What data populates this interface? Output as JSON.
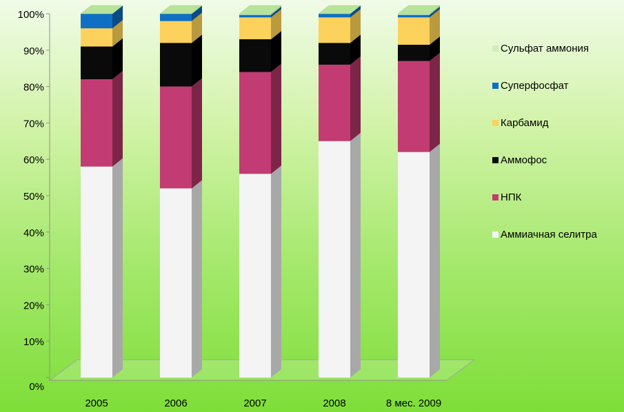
{
  "chart_data": {
    "type": "bar",
    "stacked": true,
    "percent_stacked": true,
    "three_d": true,
    "categories": [
      "2005",
      "2006",
      "2007",
      "2008",
      "8 мес. 2009"
    ],
    "ylim": [
      0,
      100
    ],
    "yticks": [
      "0%",
      "10%",
      "20%",
      "30%",
      "40%",
      "50%",
      "60%",
      "70%",
      "80%",
      "90%",
      "100%"
    ],
    "grid": false,
    "legend_position": "right",
    "series": [
      {
        "name": "Аммиачная селитра",
        "color": "#f4f4f4",
        "side_color": "#a8a8a8",
        "values": [
          58,
          52,
          56,
          65,
          62
        ]
      },
      {
        "name": "НПК",
        "color": "#c23b72",
        "side_color": "#7d2548",
        "values": [
          24,
          28,
          28,
          21,
          25
        ]
      },
      {
        "name": "Аммофос",
        "color": "#0a0a0a",
        "side_color": "#000000",
        "values": [
          9,
          12,
          9,
          6,
          4.5
        ]
      },
      {
        "name": "Карбамид",
        "color": "#fcd15c",
        "side_color": "#b99a3e",
        "values": [
          5,
          6,
          6,
          7,
          7.5
        ]
      },
      {
        "name": "Суперфосфат",
        "color": "#0f6fc4",
        "side_color": "#0a4a85",
        "values": [
          4,
          2,
          0.7,
          1,
          0.7
        ]
      },
      {
        "name": "Сульфат аммония",
        "color": "#cdeeb8",
        "side_color": "#9dbd88",
        "values": [
          0,
          0,
          0.3,
          0,
          0.3
        ]
      }
    ]
  }
}
